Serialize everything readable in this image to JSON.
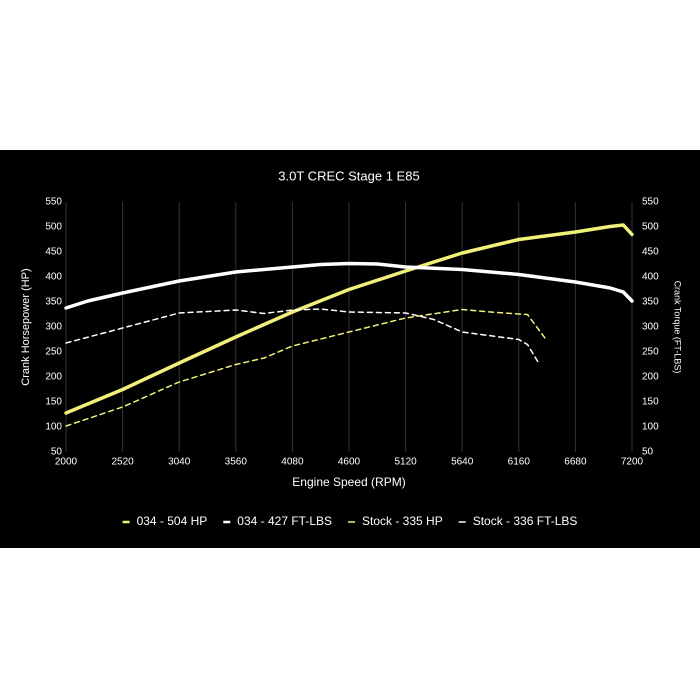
{
  "chart_data": {
    "type": "line",
    "title": "3.0T CREC Stage 1 E85",
    "x_label": "Engine Speed (RPM)",
    "y_label": "Crank Horsepower (HP)",
    "y2_label": "Crank Torque (FT-LBS)",
    "xlim": [
      2000,
      7200
    ],
    "xticks": [
      2000,
      2520,
      3040,
      3560,
      4080,
      4600,
      5120,
      5640,
      6160,
      6680,
      7200
    ],
    "ylim": [
      50,
      550
    ],
    "yticks": [
      50,
      100,
      150,
      200,
      250,
      300,
      350,
      400,
      450,
      500,
      550
    ],
    "y2lim": [
      50,
      550
    ],
    "y2ticks": [
      50,
      100,
      150,
      200,
      250,
      300,
      350,
      400,
      450,
      500,
      550
    ],
    "grid": "x",
    "legend": "bottom",
    "series": [
      {
        "name": "034 - 504 HP",
        "color": "#f0f07a",
        "style": "solid",
        "x": [
          2000,
          2520,
          3040,
          3560,
          4080,
          4600,
          5120,
          5640,
          6160,
          6680,
          7000,
          7120,
          7200
        ],
        "values": [
          128,
          175,
          228,
          280,
          330,
          375,
          412,
          448,
          475,
          490,
          501,
          504,
          485
        ]
      },
      {
        "name": "034 - 427 FT-LBS",
        "color": "#ffffff",
        "style": "solid",
        "axis": "y2",
        "x": [
          2000,
          2200,
          2520,
          3040,
          3560,
          4080,
          4340,
          4600,
          4860,
          5120,
          5640,
          6160,
          6680,
          7000,
          7120,
          7200
        ],
        "values": [
          338,
          352,
          368,
          392,
          410,
          420,
          425,
          427,
          426,
          420,
          415,
          405,
          390,
          378,
          370,
          352
        ]
      },
      {
        "name": "Stock - 335 HP",
        "color": "#f0f07a",
        "style": "dashed",
        "x": [
          2000,
          2520,
          3040,
          3560,
          3820,
          4080,
          4600,
          5120,
          5640,
          5900,
          6160,
          6240,
          6400
        ],
        "values": [
          102,
          140,
          190,
          225,
          238,
          262,
          290,
          318,
          335,
          330,
          326,
          325,
          278
        ]
      },
      {
        "name": "Stock - 336 FT-LBS",
        "color": "#ffffff",
        "style": "dashed",
        "axis": "y2",
        "x": [
          2000,
          2520,
          3040,
          3560,
          3820,
          4080,
          4340,
          4600,
          5120,
          5380,
          5640,
          6160,
          6240,
          6350
        ],
        "values": [
          268,
          298,
          328,
          334,
          327,
          334,
          336,
          330,
          328,
          315,
          290,
          275,
          265,
          225
        ]
      }
    ]
  }
}
